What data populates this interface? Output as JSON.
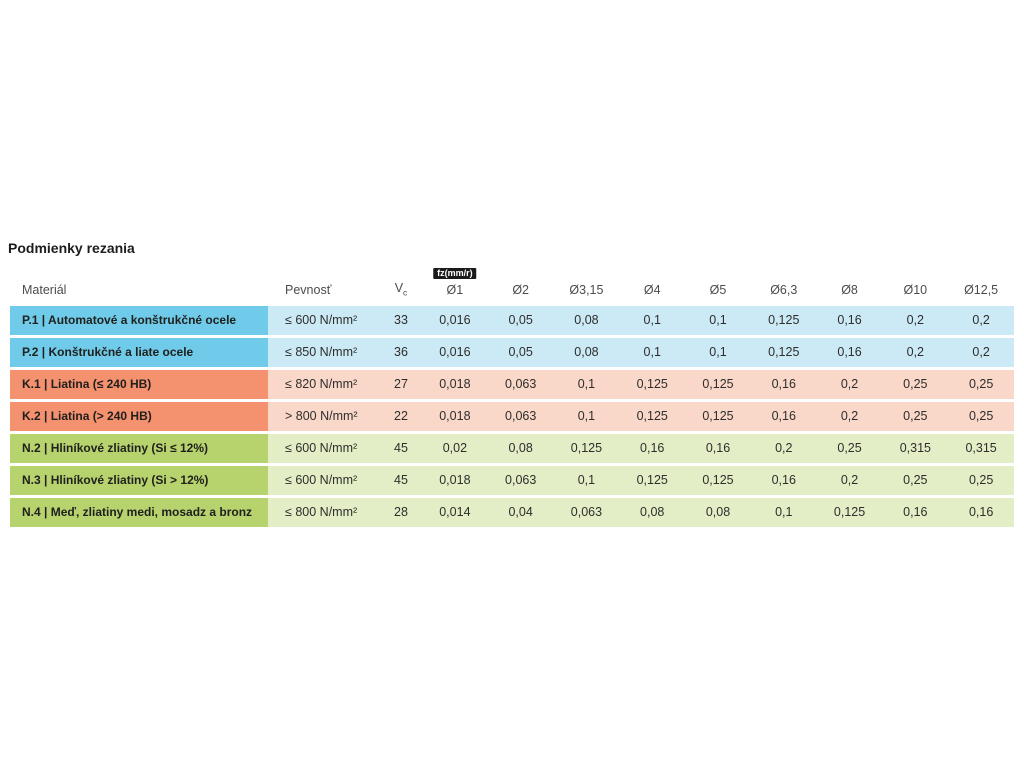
{
  "page": {
    "title": "Podmienky rezania"
  },
  "table": {
    "unit_badge": "fz(mm/r)",
    "headers": {
      "material": "Materiál",
      "strength": "Pevnosť",
      "vc_main": "V",
      "vc_sub": "c"
    },
    "diameter_headers": [
      "Ø1",
      "Ø2",
      "Ø3,15",
      "Ø4",
      "Ø5",
      "Ø6,3",
      "Ø8",
      "Ø10",
      "Ø12,5"
    ],
    "colors": {
      "P_dark": "#6fcbe9",
      "P_light": "#cce9f6",
      "K_dark": "#f4916e",
      "K_light": "#f9d7c9",
      "N_dark": "#b7d36d",
      "N_light": "#e3edc6"
    },
    "rows": [
      {
        "group": "P",
        "material": "P.1 | Automatové a konštrukčné ocele",
        "strength": "≤ 600 N/mm²",
        "vc": "33",
        "values": [
          "0,016",
          "0,05",
          "0,08",
          "0,1",
          "0,1",
          "0,125",
          "0,16",
          "0,2",
          "0,2"
        ]
      },
      {
        "group": "P",
        "material": "P.2 | Konštrukčné a liate ocele",
        "strength": "≤ 850 N/mm²",
        "vc": "36",
        "values": [
          "0,016",
          "0,05",
          "0,08",
          "0,1",
          "0,1",
          "0,125",
          "0,16",
          "0,2",
          "0,2"
        ]
      },
      {
        "group": "K",
        "material": "K.1 | Liatina (≤ 240 HB)",
        "strength": "≤ 820 N/mm²",
        "vc": "27",
        "values": [
          "0,018",
          "0,063",
          "0,1",
          "0,125",
          "0,125",
          "0,16",
          "0,2",
          "0,25",
          "0,25"
        ]
      },
      {
        "group": "K",
        "material": "K.2 | Liatina (> 240 HB)",
        "strength": "> 800 N/mm²",
        "vc": "22",
        "values": [
          "0,018",
          "0,063",
          "0,1",
          "0,125",
          "0,125",
          "0,16",
          "0,2",
          "0,25",
          "0,25"
        ]
      },
      {
        "group": "N",
        "material": "N.2 | Hliníkové zliatiny (Si ≤ 12%)",
        "strength": "≤ 600 N/mm²",
        "vc": "45",
        "values": [
          "0,02",
          "0,08",
          "0,125",
          "0,16",
          "0,16",
          "0,2",
          "0,25",
          "0,315",
          "0,315"
        ]
      },
      {
        "group": "N",
        "material": "N.3 | Hliníkové zliatiny (Si > 12%)",
        "strength": "≤ 600 N/mm²",
        "vc": "45",
        "values": [
          "0,018",
          "0,063",
          "0,1",
          "0,125",
          "0,125",
          "0,16",
          "0,2",
          "0,25",
          "0,25"
        ]
      },
      {
        "group": "N",
        "material": "N.4 | Meď, zliatiny medi, mosadz a bronz",
        "strength": "≤ 800 N/mm²",
        "vc": "28",
        "values": [
          "0,014",
          "0,04",
          "0,063",
          "0,08",
          "0,08",
          "0,1",
          "0,125",
          "0,16",
          "0,16"
        ]
      }
    ]
  }
}
